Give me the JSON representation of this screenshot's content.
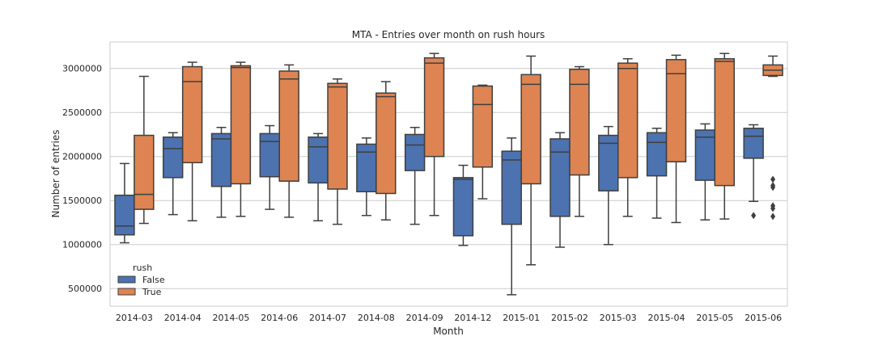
{
  "chart_data": {
    "type": "box",
    "title": "MTA - Entries over month on rush hours",
    "xlabel": "Month",
    "ylabel": "Number of entries",
    "categories": [
      "2014-03",
      "2014-04",
      "2014-05",
      "2014-06",
      "2014-07",
      "2014-08",
      "2014-09",
      "2014-12",
      "2015-01",
      "2015-02",
      "2015-03",
      "2015-04",
      "2015-05",
      "2015-06"
    ],
    "ylim": [
      300000,
      3300000
    ],
    "yticks": [
      500000,
      1000000,
      1500000,
      2000000,
      2500000,
      3000000
    ],
    "ytick_labels": [
      "500000",
      "1000000",
      "1500000",
      "2000000",
      "2500000",
      "3000000"
    ],
    "grid": "horizontal",
    "legend": {
      "title": "rush",
      "position": "lower-left"
    },
    "series": [
      {
        "name": "False",
        "color": "#4c72b0",
        "boxes": [
          {
            "whislo": 1020000,
            "q1": 1110000,
            "med": 1210000,
            "q3": 1560000,
            "whishi": 1920000,
            "fliers": []
          },
          {
            "whislo": 1340000,
            "q1": 1760000,
            "med": 2090000,
            "q3": 2220000,
            "whishi": 2270000,
            "fliers": []
          },
          {
            "whislo": 1310000,
            "q1": 1660000,
            "med": 2200000,
            "q3": 2260000,
            "whishi": 2330000,
            "fliers": []
          },
          {
            "whislo": 1400000,
            "q1": 1770000,
            "med": 2170000,
            "q3": 2260000,
            "whishi": 2350000,
            "fliers": []
          },
          {
            "whislo": 1270000,
            "q1": 1700000,
            "med": 2110000,
            "q3": 2220000,
            "whishi": 2260000,
            "fliers": []
          },
          {
            "whislo": 1330000,
            "q1": 1600000,
            "med": 2050000,
            "q3": 2140000,
            "whishi": 2210000,
            "fliers": []
          },
          {
            "whislo": 1230000,
            "q1": 1840000,
            "med": 2130000,
            "q3": 2250000,
            "whishi": 2330000,
            "fliers": []
          },
          {
            "whislo": 990000,
            "q1": 1100000,
            "med": 1740000,
            "q3": 1760000,
            "whishi": 1900000,
            "fliers": []
          },
          {
            "whislo": 430000,
            "q1": 1230000,
            "med": 1960000,
            "q3": 2060000,
            "whishi": 2210000,
            "fliers": []
          },
          {
            "whislo": 970000,
            "q1": 1320000,
            "med": 2050000,
            "q3": 2200000,
            "whishi": 2270000,
            "fliers": []
          },
          {
            "whislo": 1000000,
            "q1": 1610000,
            "med": 2150000,
            "q3": 2240000,
            "whishi": 2340000,
            "fliers": []
          },
          {
            "whislo": 1300000,
            "q1": 1780000,
            "med": 2160000,
            "q3": 2270000,
            "whishi": 2320000,
            "fliers": []
          },
          {
            "whislo": 1280000,
            "q1": 1730000,
            "med": 2220000,
            "q3": 2300000,
            "whishi": 2370000,
            "fliers": []
          },
          {
            "whislo": 1490000,
            "q1": 1980000,
            "med": 2230000,
            "q3": 2320000,
            "whishi": 2360000,
            "fliers": [
              1330000
            ]
          }
        ]
      },
      {
        "name": "True",
        "color": "#dd8452",
        "boxes": [
          {
            "whislo": 1240000,
            "q1": 1400000,
            "med": 1570000,
            "q3": 2240000,
            "whishi": 2910000,
            "fliers": []
          },
          {
            "whislo": 1270000,
            "q1": 1930000,
            "med": 2850000,
            "q3": 3020000,
            "whishi": 3070000,
            "fliers": []
          },
          {
            "whislo": 1320000,
            "q1": 1690000,
            "med": 3010000,
            "q3": 3030000,
            "whishi": 3070000,
            "fliers": []
          },
          {
            "whislo": 1310000,
            "q1": 1720000,
            "med": 2880000,
            "q3": 2970000,
            "whishi": 3040000,
            "fliers": []
          },
          {
            "whislo": 1230000,
            "q1": 1630000,
            "med": 2790000,
            "q3": 2830000,
            "whishi": 2880000,
            "fliers": []
          },
          {
            "whislo": 1280000,
            "q1": 1580000,
            "med": 2680000,
            "q3": 2720000,
            "whishi": 2850000,
            "fliers": []
          },
          {
            "whislo": 1330000,
            "q1": 2000000,
            "med": 3060000,
            "q3": 3120000,
            "whishi": 3170000,
            "fliers": []
          },
          {
            "whislo": 1520000,
            "q1": 1880000,
            "med": 2590000,
            "q3": 2800000,
            "whishi": 2810000,
            "fliers": []
          },
          {
            "whislo": 770000,
            "q1": 1690000,
            "med": 2820000,
            "q3": 2930000,
            "whishi": 3140000,
            "fliers": []
          },
          {
            "whislo": 1320000,
            "q1": 1790000,
            "med": 2820000,
            "q3": 2990000,
            "whishi": 3020000,
            "fliers": []
          },
          {
            "whislo": 1320000,
            "q1": 1760000,
            "med": 3000000,
            "q3": 3060000,
            "whishi": 3110000,
            "fliers": []
          },
          {
            "whislo": 1250000,
            "q1": 1940000,
            "med": 2940000,
            "q3": 3100000,
            "whishi": 3150000,
            "fliers": []
          },
          {
            "whislo": 1290000,
            "q1": 1670000,
            "med": 3080000,
            "q3": 3110000,
            "whishi": 3170000,
            "fliers": []
          },
          {
            "whislo": 2910000,
            "q1": 2920000,
            "med": 2980000,
            "q3": 3040000,
            "whishi": 3140000,
            "fliers": [
              1740000,
              1670000,
              1650000,
              1440000,
              1410000,
              1320000
            ]
          }
        ]
      }
    ]
  }
}
